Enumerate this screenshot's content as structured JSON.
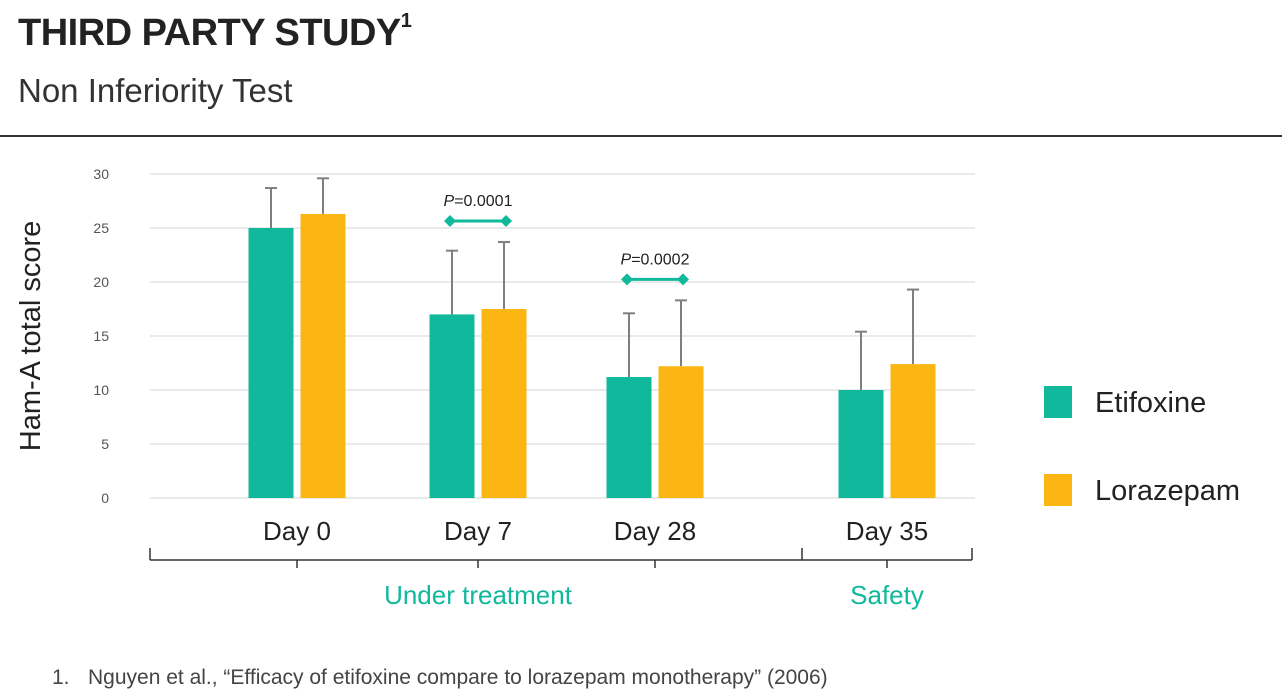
{
  "header": {
    "title": "THIRD PARTY STUDY",
    "title_sup": "1",
    "subtitle": "Non Inferiority Test"
  },
  "colors": {
    "etifoxine": "#10b89c",
    "lorazepam": "#fbb614",
    "grid": "#dddddd",
    "error_bar": "#7f7f7f",
    "annotation": "#10b89c",
    "group_label": "#10b89c"
  },
  "chart_data": {
    "type": "bar",
    "ylabel": "Ham-A total score",
    "xlabel": "",
    "ylim": [
      0,
      30
    ],
    "yticks": [
      0,
      5,
      10,
      15,
      20,
      25,
      30
    ],
    "grid": true,
    "legend_placement": "right",
    "categories": [
      "Day 0",
      "Day 7",
      "Day 28",
      "Day 35"
    ],
    "series": [
      {
        "name": "Etifoxine",
        "values": [
          25.0,
          17.0,
          11.2,
          10.0
        ],
        "error_upper": [
          28.7,
          22.9,
          17.1,
          15.4
        ]
      },
      {
        "name": "Lorazepam",
        "values": [
          26.3,
          17.5,
          12.2,
          12.4
        ],
        "error_upper": [
          29.6,
          23.7,
          18.3,
          19.3
        ]
      }
    ],
    "annotations": [
      {
        "text": "P=0.0001",
        "category": "Day 7"
      },
      {
        "text": "P=0.0002",
        "category": "Day 28"
      }
    ],
    "groups": [
      {
        "label": "Under treatment",
        "categories": [
          "Day 0",
          "Day 7",
          "Day 28"
        ]
      },
      {
        "label": "Safety",
        "categories": [
          "Day 35"
        ]
      }
    ]
  },
  "footnote": {
    "number": "1.",
    "text": "Nguyen et al., “Efficacy of etifoxine compare to lorazepam monotherapy” (2006)"
  }
}
